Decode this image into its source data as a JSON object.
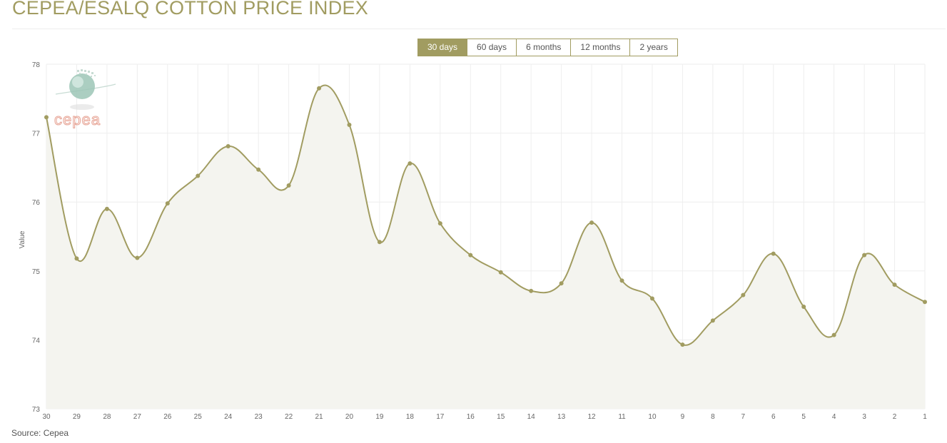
{
  "header": {
    "title": "CEPEA/ESALQ COTTON PRICE INDEX"
  },
  "range_selector": {
    "buttons": [
      "30 days",
      "60 days",
      "6 months",
      "12 months",
      "2 years"
    ],
    "active": "30 days"
  },
  "watermark": {
    "text": "cepea",
    "icon": "globe-logo-icon"
  },
  "footer": {
    "source": "Source: Cepea"
  },
  "colors": {
    "accent": "#a19c61",
    "line": "#a19c61",
    "area_fill": "#f4f4ef",
    "grid": "#eeeeee",
    "watermark_text": "#e8a89a",
    "globe": "#9cc6b6"
  },
  "chart_data": {
    "type": "area",
    "categories": [
      "30",
      "29",
      "28",
      "27",
      "26",
      "25",
      "24",
      "23",
      "22",
      "21",
      "20",
      "19",
      "18",
      "17",
      "16",
      "15",
      "14",
      "13",
      "12",
      "11",
      "10",
      "9",
      "8",
      "7",
      "6",
      "5",
      "4",
      "3",
      "2",
      "1"
    ],
    "series": [
      {
        "values": [
          77.23,
          75.18,
          75.9,
          75.19,
          75.98,
          76.38,
          76.81,
          76.47,
          76.24,
          77.65,
          77.12,
          75.42,
          76.56,
          75.69,
          75.23,
          74.98,
          74.71,
          74.82,
          75.7,
          74.86,
          74.6,
          73.93,
          74.28,
          74.65,
          75.25,
          74.48,
          74.07,
          75.23,
          74.8,
          74.55
        ]
      }
    ],
    "title": "",
    "xlabel": "",
    "ylabel": "Value",
    "ylim": [
      73,
      78
    ],
    "yticks": [
      73,
      74,
      75,
      76,
      77,
      78
    ],
    "grid": true,
    "markers": true,
    "smooth": true
  }
}
